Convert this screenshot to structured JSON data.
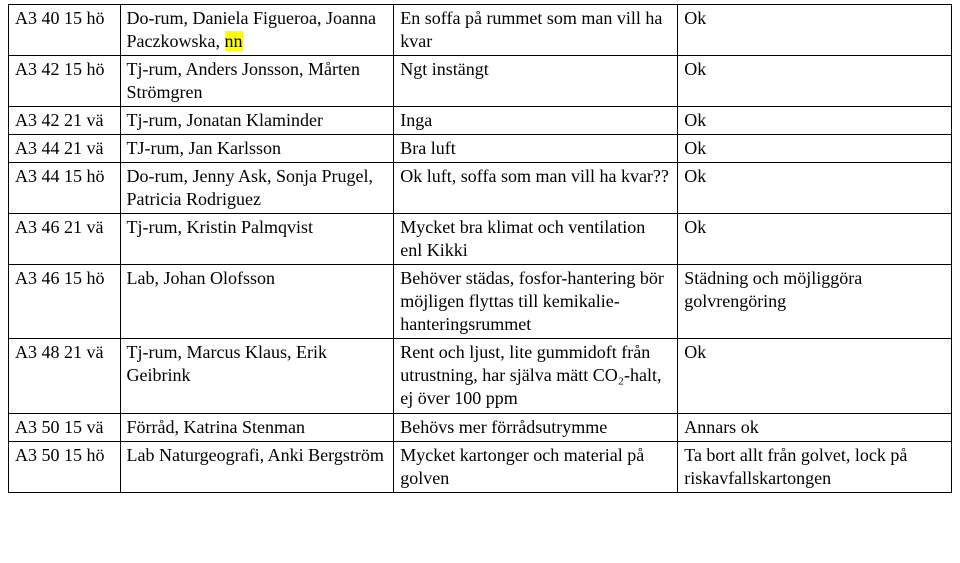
{
  "rows": [
    {
      "c1": "A3 40 15 hö",
      "c2": "Do-rum, Daniela Figueroa, Joanna Paczkowska, ",
      "c2_hl": "nn",
      "c3": "En soffa på rummet som man vill ha kvar",
      "c4": "Ok"
    },
    {
      "c1": "A3 42 15 hö",
      "c2": "Tj-rum, Anders Jonsson, Mårten Strömgren",
      "c3": "Ngt instängt",
      "c4": "Ok"
    },
    {
      "c1": "A3 42 21 vä",
      "c2": "Tj-rum, Jonatan Klaminder",
      "c3": "Inga",
      "c4": "Ok"
    },
    {
      "c1": "A3 44 21 vä",
      "c2": "TJ-rum, Jan Karlsson",
      "c3": "Bra luft",
      "c4": "Ok"
    },
    {
      "c1": "A3 44 15 hö",
      "c2": "Do-rum, Jenny Ask, Sonja Prugel, Patricia Rodriguez",
      "c3": "Ok luft, soffa som man vill ha kvar??",
      "c4": "Ok"
    },
    {
      "c1": "A3 46 21 vä",
      "c2": "Tj-rum, Kristin Palmqvist",
      "c3": "Mycket bra klimat och ventilation enl Kikki",
      "c4": "Ok"
    },
    {
      "c1": "A3 46 15 hö",
      "c2": "Lab, Johan Olofsson",
      "c3": "Behöver städas, fosfor-hantering bör möjligen flyttas till kemikalie-hanteringsrummet",
      "c4": "Städning och möjliggöra golvrengöring"
    },
    {
      "c1": "A3 48 21 vä",
      "c2": "Tj-rum, Marcus Klaus, Erik Geibrink",
      "c3": "Rent och ljust, lite gummidoft från utrustning, har själva mätt CO₂-halt, ej över 100 ppm",
      "c4": "Ok"
    },
    {
      "c1": "A3 50 15 vä",
      "c2": "Förråd, Katrina Stenman",
      "c3": "Behövs mer förrådsutrymme",
      "c4": "Annars ok"
    },
    {
      "c1": "A3 50 15 hö",
      "c2": "Lab Naturgeografi, Anki Bergström",
      "c3": "Mycket kartonger och material på golven",
      "c4": "Ta bort allt från golvet, lock på riskavfallskartongen"
    }
  ]
}
